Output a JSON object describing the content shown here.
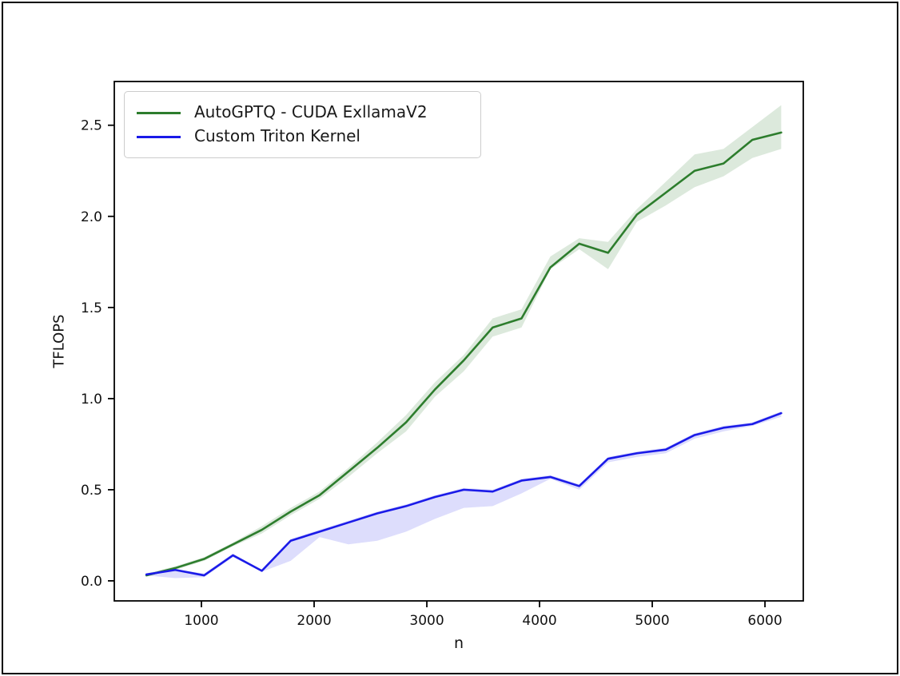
{
  "figure": {
    "background": "#ffffff",
    "border_color": "#000000"
  },
  "chart_data": {
    "type": "line",
    "title": "",
    "xlabel": "n",
    "ylabel": "TFLOPS",
    "grid": false,
    "legend_position": "upper-left",
    "xlim": [
      227,
      6340
    ],
    "ylim": [
      -0.11,
      2.74
    ],
    "x_ticks": [
      1000,
      2000,
      3000,
      4000,
      5000,
      6000
    ],
    "x_tick_labels": [
      "1000",
      "2000",
      "3000",
      "4000",
      "5000",
      "6000"
    ],
    "y_ticks": [
      0.0,
      0.5,
      1.0,
      1.5,
      2.0,
      2.5
    ],
    "y_tick_labels": [
      "0.0",
      "0.5",
      "1.0",
      "1.5",
      "2.0",
      "2.5"
    ],
    "x": [
      512,
      768,
      1024,
      1280,
      1536,
      1792,
      2048,
      2304,
      2560,
      2816,
      3072,
      3328,
      3584,
      3840,
      4096,
      4352,
      4608,
      4864,
      5120,
      5376,
      5632,
      5888,
      6144
    ],
    "series": [
      {
        "name": "AutoGPTQ - CUDA ExllamaV2",
        "color": "#2d7d2d",
        "band_opacity": 0.17,
        "values": [
          0.03,
          0.07,
          0.12,
          0.2,
          0.28,
          0.38,
          0.47,
          0.6,
          0.73,
          0.87,
          1.05,
          1.21,
          1.39,
          1.44,
          1.72,
          1.85,
          1.8,
          2.01,
          2.13,
          2.25,
          2.29,
          2.42,
          2.46
        ],
        "band_low": [
          0.03,
          0.06,
          0.11,
          0.19,
          0.26,
          0.36,
          0.45,
          0.57,
          0.7,
          0.82,
          1.01,
          1.15,
          1.34,
          1.39,
          1.71,
          1.82,
          1.71,
          1.97,
          2.06,
          2.16,
          2.22,
          2.32,
          2.37
        ],
        "band_high": [
          0.04,
          0.08,
          0.13,
          0.21,
          0.3,
          0.4,
          0.49,
          0.62,
          0.76,
          0.91,
          1.09,
          1.24,
          1.44,
          1.49,
          1.78,
          1.88,
          1.86,
          2.04,
          2.19,
          2.34,
          2.37,
          2.49,
          2.61
        ]
      },
      {
        "name": "Custom Triton Kernel",
        "color": "#1a1ae8",
        "band_opacity": 0.15,
        "values": [
          0.035,
          0.06,
          0.03,
          0.14,
          0.055,
          0.22,
          0.27,
          0.32,
          0.37,
          0.41,
          0.46,
          0.5,
          0.49,
          0.55,
          0.57,
          0.52,
          0.67,
          0.7,
          0.72,
          0.8,
          0.84,
          0.86,
          0.92
        ],
        "band_low": [
          0.03,
          0.015,
          0.02,
          0.13,
          0.05,
          0.11,
          0.24,
          0.2,
          0.22,
          0.27,
          0.34,
          0.4,
          0.41,
          0.48,
          0.56,
          0.5,
          0.65,
          0.68,
          0.7,
          0.78,
          0.82,
          0.85,
          0.9
        ],
        "band_high": [
          0.04,
          0.065,
          0.04,
          0.15,
          0.06,
          0.23,
          0.28,
          0.33,
          0.38,
          0.42,
          0.47,
          0.51,
          0.5,
          0.56,
          0.58,
          0.53,
          0.68,
          0.71,
          0.73,
          0.81,
          0.85,
          0.87,
          0.93
        ]
      }
    ]
  }
}
